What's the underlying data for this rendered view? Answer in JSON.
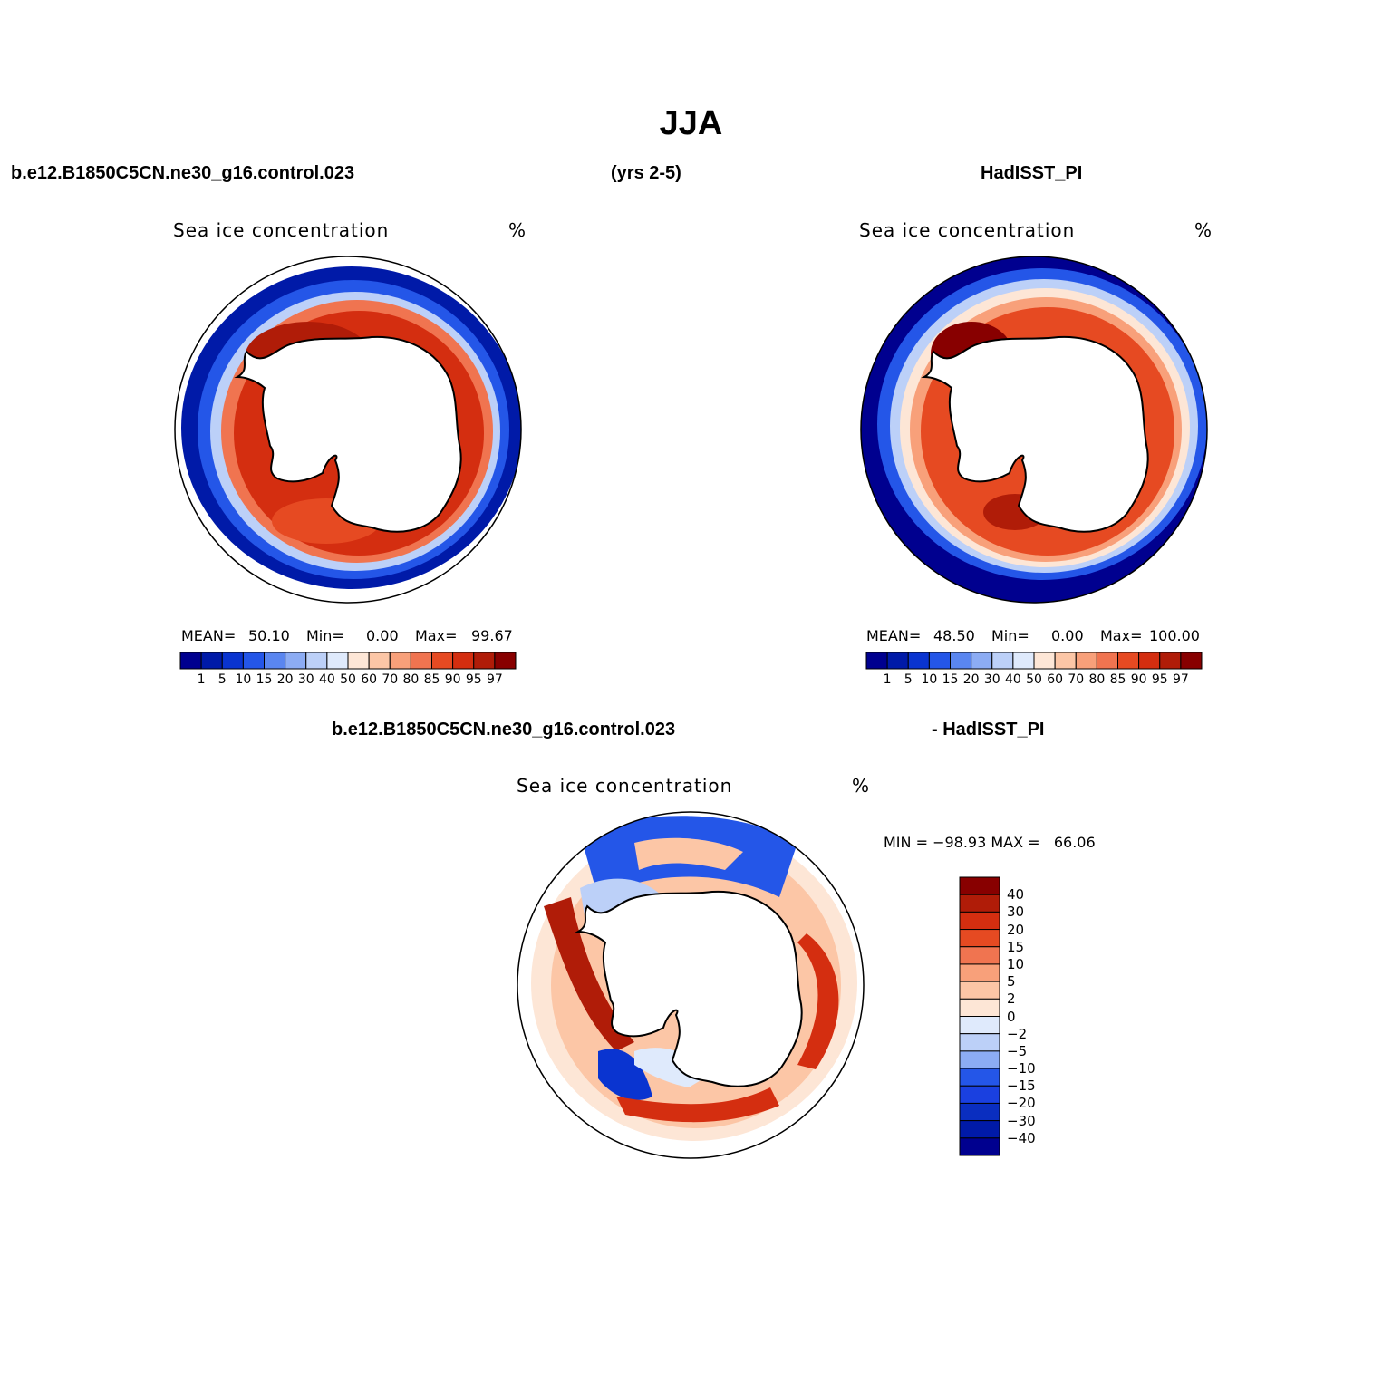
{
  "figure": {
    "season": "JJA",
    "case_name": "b.e12.B1850C5CN.ne30_g16.control.023",
    "years": "(yrs 2-5)",
    "obs_name": "HadISST_PI",
    "diff_left": "b.e12.B1850C5CN.ne30_g16.control.023",
    "diff_right": "- HadISST_PI"
  },
  "panels": [
    {
      "variable": "Sea ice concentration",
      "units": "%",
      "mean_label": "MEAN=",
      "mean": "50.10",
      "min_label": "Min=",
      "min": "0.00",
      "max_label": "Max=",
      "max": "99.67"
    },
    {
      "variable": "Sea ice concentration",
      "units": "%",
      "mean_label": "MEAN=",
      "mean": "48.50",
      "min_label": "Min=",
      "min": "0.00",
      "max_label": "Max=",
      "max": "100.00"
    },
    {
      "variable": "Sea ice concentration",
      "units": "%",
      "minmax_text": "MIN = −98.93 MAX =   66.06"
    }
  ],
  "colorbar_abs": {
    "levels": [
      "1",
      "5",
      "10",
      "15",
      "20",
      "30",
      "40",
      "50",
      "60",
      "70",
      "80",
      "85",
      "90",
      "95",
      "97"
    ],
    "colors": [
      "#00008f",
      "#001aa8",
      "#0a34d0",
      "#2456e8",
      "#5a86f0",
      "#8cacf4",
      "#bcd0f8",
      "#dfeafc",
      "#fde6d6",
      "#fcc6a6",
      "#f8a07a",
      "#f07450",
      "#e64a22",
      "#d42e10",
      "#b01c08",
      "#880000"
    ]
  },
  "colorbar_diff": {
    "levels": [
      "40",
      "30",
      "20",
      "15",
      "10",
      "5",
      "2",
      "0",
      "−2",
      "−5",
      "−10",
      "−15",
      "−20",
      "−30",
      "−40"
    ],
    "colors": [
      "#880000",
      "#b01c08",
      "#d42e10",
      "#e64a22",
      "#f07450",
      "#f8a07a",
      "#fcc6a6",
      "#fde6d6",
      "#dfeafc",
      "#bcd0f8",
      "#8cacf4",
      "#2456e8",
      "#1a40e0",
      "#0a2ec0",
      "#001aa8",
      "#00008f"
    ]
  },
  "colors": {
    "ice_high": "#b01c08",
    "ice_mid": "#f07450",
    "ice_low": "#001aa8",
    "diff_pos": "#d42e10",
    "diff_neg": "#0a34d0"
  }
}
